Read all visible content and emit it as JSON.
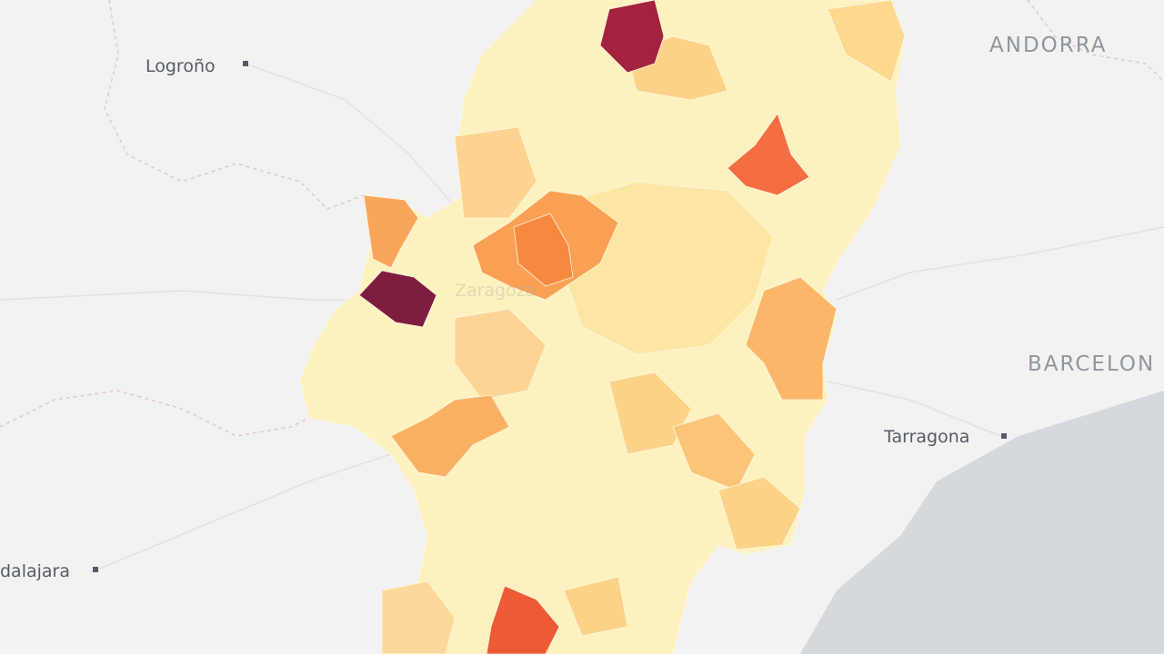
{
  "places": [
    {
      "name": "Logroño"
    },
    {
      "name": "ANDORRA"
    },
    {
      "name": "Zaragoza"
    },
    {
      "name": "BARCELON"
    },
    {
      "name": "Tarragona"
    },
    {
      "name": "dalajara"
    }
  ]
}
